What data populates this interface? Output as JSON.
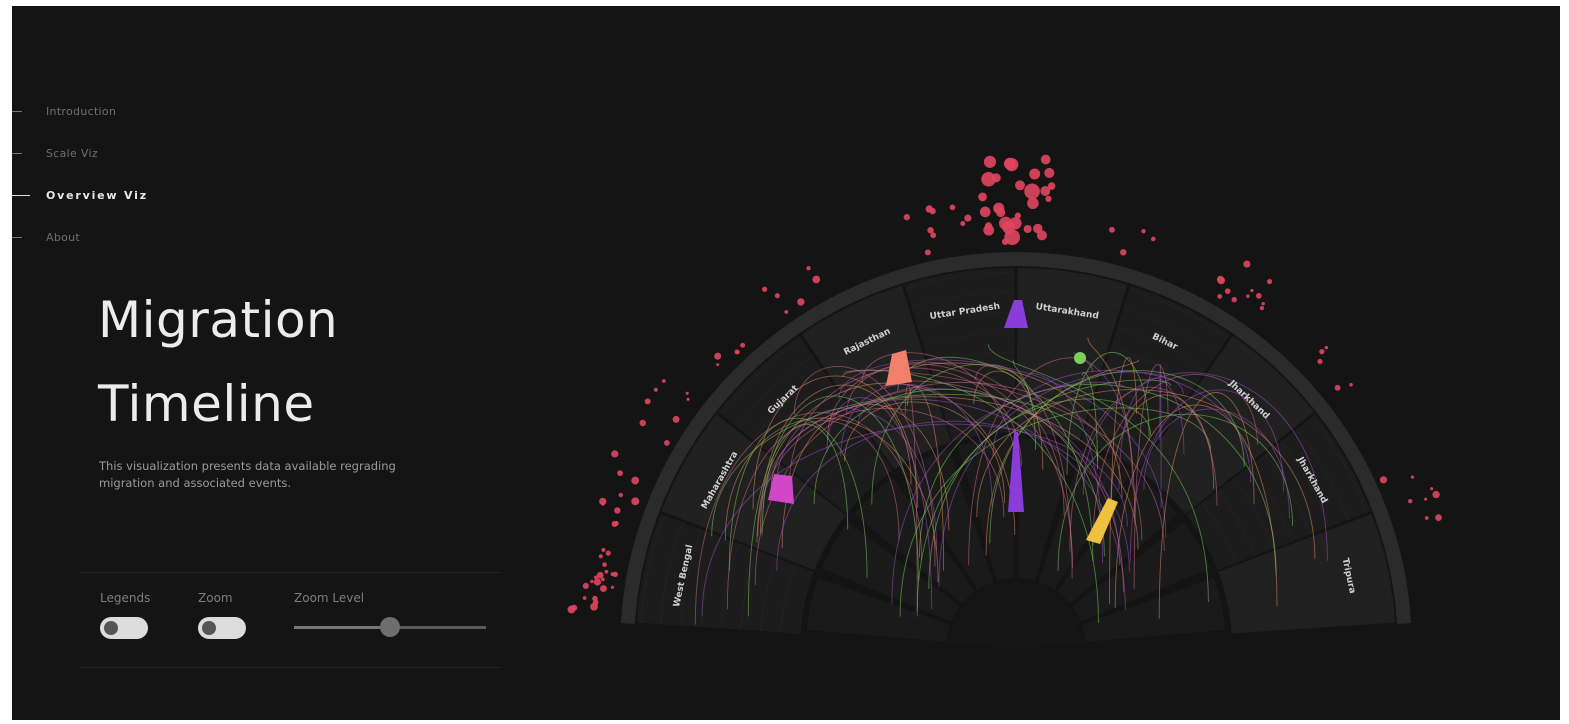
{
  "nav": {
    "items": [
      {
        "label": "Introduction",
        "active": false
      },
      {
        "label": "Scale Viz",
        "active": false
      },
      {
        "label": "Overview Viz",
        "active": true
      },
      {
        "label": "About",
        "active": false
      }
    ]
  },
  "header": {
    "title_line1": "Migration",
    "title_line2": "Timeline",
    "description": "This visualization presents data available regrading migration and associated events."
  },
  "controls": {
    "legends": {
      "label": "Legends",
      "on": false
    },
    "zoom": {
      "label": "Zoom",
      "on": false
    },
    "zoom_level": {
      "label": "Zoom Level",
      "value": 0.5
    }
  },
  "visualization": {
    "segments": [
      "West Bengal",
      "Maharashtra",
      "Gujarat",
      "Rajasthan",
      "Uttar Pradesh",
      "Uttarakhand",
      "Bihar",
      "Jharkhand",
      "Jharkhand",
      "Tripura"
    ],
    "colors": {
      "background": "#141414",
      "arc_ring": "#2b2b2b",
      "sector_fill": "#1e1e1e",
      "events_red": "#e0455f",
      "flow_purple": "#a050c8",
      "flow_green": "#7ccf5a",
      "flow_pink": "#d46a8a",
      "flow_orange": "#e09060",
      "accent_magenta": "#d048c8",
      "accent_violet": "#8a3cd8",
      "accent_salmon": "#f0806a",
      "accent_yellow": "#f0c040"
    }
  }
}
